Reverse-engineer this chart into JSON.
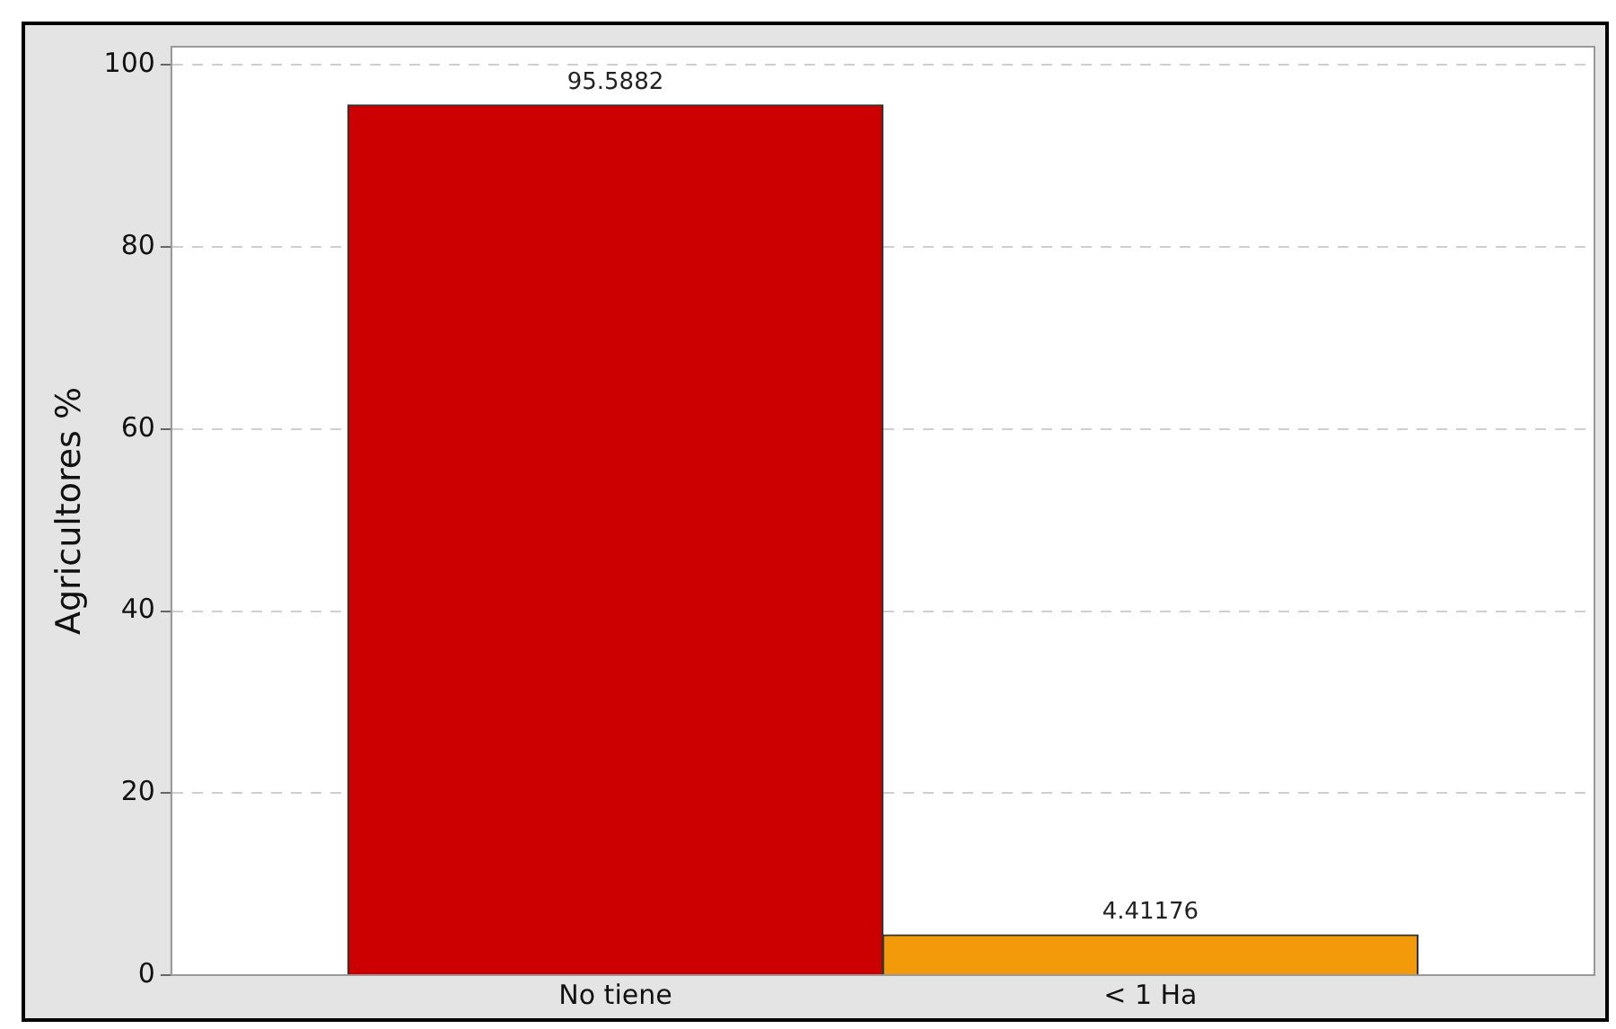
{
  "chart_data": {
    "type": "bar",
    "ylabel": "Agricultores %",
    "categories": [
      "No tiene",
      "< 1 Ha"
    ],
    "values": [
      95.5882,
      4.41176
    ],
    "colors": [
      "#cc0000",
      "#f39a0b"
    ],
    "ylim": [
      0,
      102
    ],
    "yticks": [
      0,
      20,
      40,
      60,
      80,
      100
    ],
    "grid": "y",
    "data_labels": true,
    "legend": false
  }
}
